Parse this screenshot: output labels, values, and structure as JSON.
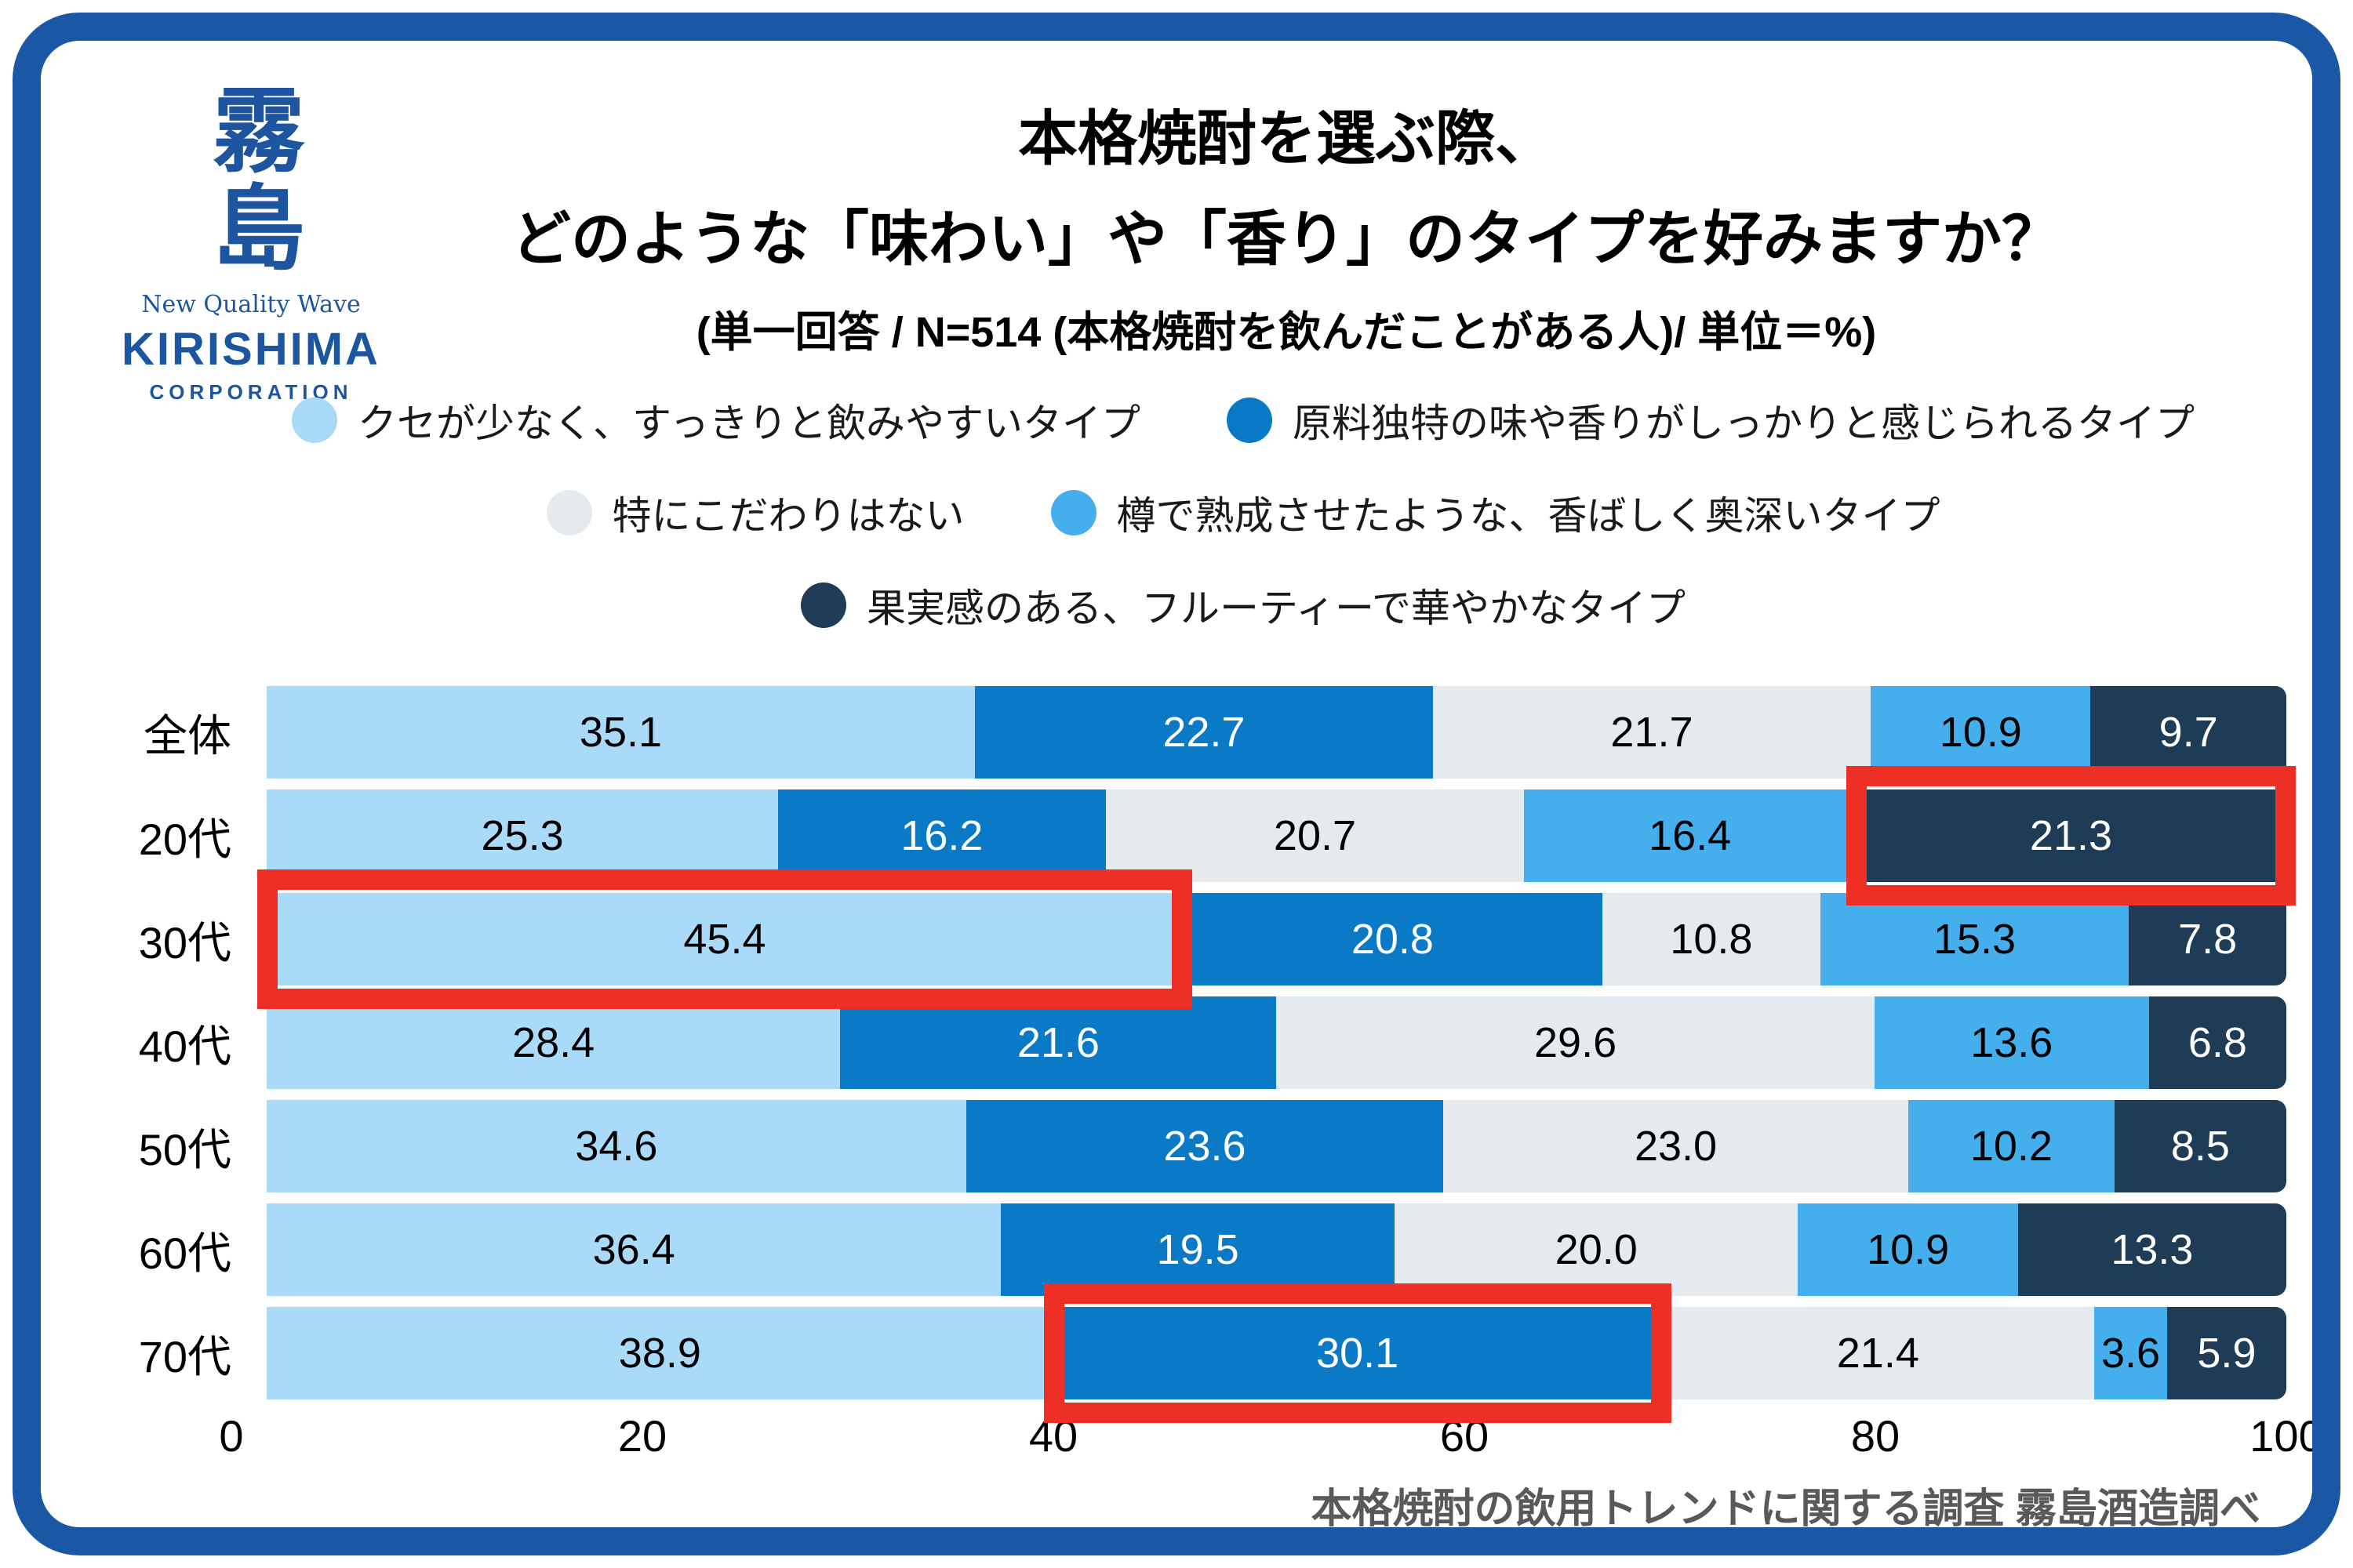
{
  "logo": {
    "kanji": "霧島",
    "tagline": "New Quality Wave",
    "name": "KIRISHIMA",
    "subname": "CORPORATION"
  },
  "title": {
    "line1": "本格焼酎を選ぶ際、",
    "line2": "どのような「味わい」や「香り」のタイプを好みますか？",
    "line3": "(単一回答 / N=514 (本格焼酎を飲んだことがある人)/ 単位＝%)"
  },
  "colors": {
    "frame": "#1a57a5",
    "logo": "#1e55a0",
    "footer": "#595959",
    "hl": "#ee2f26"
  },
  "chart_data": {
    "type": "bar",
    "stacked": true,
    "orientation": "horizontal",
    "title": "本格焼酎を選ぶ際、どのような「味わい」や「香り」のタイプを好みますか？",
    "subtitle": "(単一回答 / N=514 (本格焼酎を飲んだことがある人)/ 単位＝%)",
    "unit": "%",
    "categories": [
      "全体",
      "20代",
      "30代",
      "40代",
      "50代",
      "60代",
      "70代"
    ],
    "series": [
      {
        "name": "クセが少なく、すっきりと飲みやすいタイプ",
        "color": "#a9daf8",
        "value_color": "#000000"
      },
      {
        "name": "原料独特の味や香りがしっかりと感じられるタイプ",
        "color": "#0a7ac6",
        "value_color": "#ffffff"
      },
      {
        "name": "特にこだわりはない",
        "color": "#e5eaef",
        "value_color": "#000000"
      },
      {
        "name": "樽で熟成させたような、香ばしく奥深いタイプ",
        "color": "#44afec",
        "value_color": "#000000"
      },
      {
        "name": "果実感のある、フルーティーで華やかなタイプ",
        "color": "#1e3c55",
        "value_color": "#ffffff"
      }
    ],
    "rows": [
      [
        35.1,
        22.7,
        21.7,
        10.9,
        9.7
      ],
      [
        25.3,
        16.2,
        20.7,
        16.4,
        21.3
      ],
      [
        45.4,
        20.8,
        10.8,
        15.3,
        7.8
      ],
      [
        28.4,
        21.6,
        29.6,
        13.6,
        6.8
      ],
      [
        34.6,
        23.6,
        23.0,
        10.2,
        8.5
      ],
      [
        36.4,
        19.5,
        20.0,
        10.9,
        13.3
      ],
      [
        38.9,
        30.1,
        21.4,
        3.6,
        5.9
      ]
    ],
    "x_ticks": [
      0,
      20,
      40,
      60,
      80,
      100
    ],
    "xlim": [
      0,
      100
    ],
    "grid": false,
    "legend_rows": [
      [
        0,
        1
      ],
      [
        2,
        3
      ],
      [
        4
      ]
    ],
    "legend_position": "top",
    "highlights": [
      {
        "row": 1,
        "segment": 4
      },
      {
        "row": 2,
        "segment": 0
      },
      {
        "row": 6,
        "segment": 1
      }
    ],
    "highlight_color": "#ee2f26"
  },
  "footer": {
    "source": "本格焼酎の飲用トレンドに関する調査 霧島酒造調べ"
  }
}
